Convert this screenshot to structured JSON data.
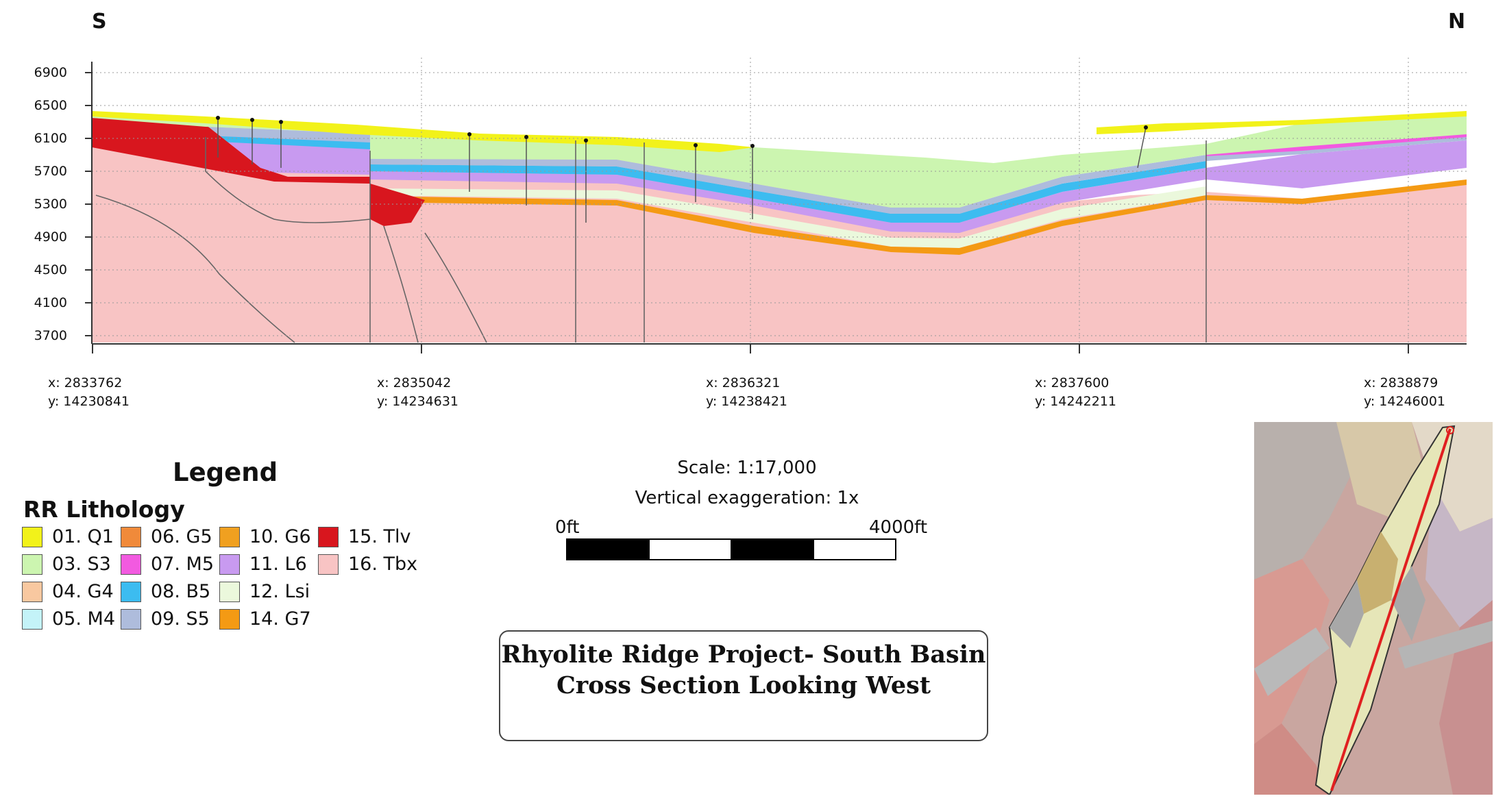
{
  "directions": {
    "left": "S",
    "right": "N"
  },
  "y_axis": {
    "ticks": [
      "6900",
      "6500",
      "6100",
      "5700",
      "5300",
      "4900",
      "4500",
      "4100",
      "3700"
    ]
  },
  "x_axis": {
    "coordinates": [
      {
        "x": "x: 2833762",
        "y": "y: 14230841"
      },
      {
        "x": "x: 2835042",
        "y": "y: 14234631"
      },
      {
        "x": "x: 2836321",
        "y": "y: 14238421"
      },
      {
        "x": "x: 2837600",
        "y": "y: 14242211"
      },
      {
        "x": "x: 2838879",
        "y": "y: 14246001"
      }
    ]
  },
  "legend": {
    "title": "Legend",
    "subtitle": "RR Lithology",
    "items": [
      {
        "label": "01. Q1",
        "color": "#f2f21a"
      },
      {
        "label": "03. S3",
        "color": "#ccf5b0"
      },
      {
        "label": "04. G4",
        "color": "#f8c8a0"
      },
      {
        "label": "05. M4",
        "color": "#c4f3f8"
      },
      {
        "label": "06. G5",
        "color": "#f08a3a"
      },
      {
        "label": "07. M5",
        "color": "#f25ae0"
      },
      {
        "label": "08. B5",
        "color": "#3cbcf0"
      },
      {
        "label": "09. S5",
        "color": "#aebcdc"
      },
      {
        "label": "10. G6",
        "color": "#f0a020"
      },
      {
        "label": "11. L6",
        "color": "#c89af0"
      },
      {
        "label": "12. Lsi",
        "color": "#ebf8dc"
      },
      {
        "label": "14. G7",
        "color": "#f49a14"
      },
      {
        "label": "15. Tlv",
        "color": "#d8161e"
      },
      {
        "label": "16. Tbx",
        "color": "#f8c4c4"
      }
    ]
  },
  "scale": {
    "text": "Scale: 1:17,000",
    "vertical_exaggeration": "Vertical exaggeration: 1x",
    "start_label": "0ft",
    "end_label": "4000ft"
  },
  "title": {
    "line1": "Rhyolite Ridge Project- South Basin",
    "line2": "Cross Section Looking West"
  },
  "map_section_line_color": "#e02020"
}
